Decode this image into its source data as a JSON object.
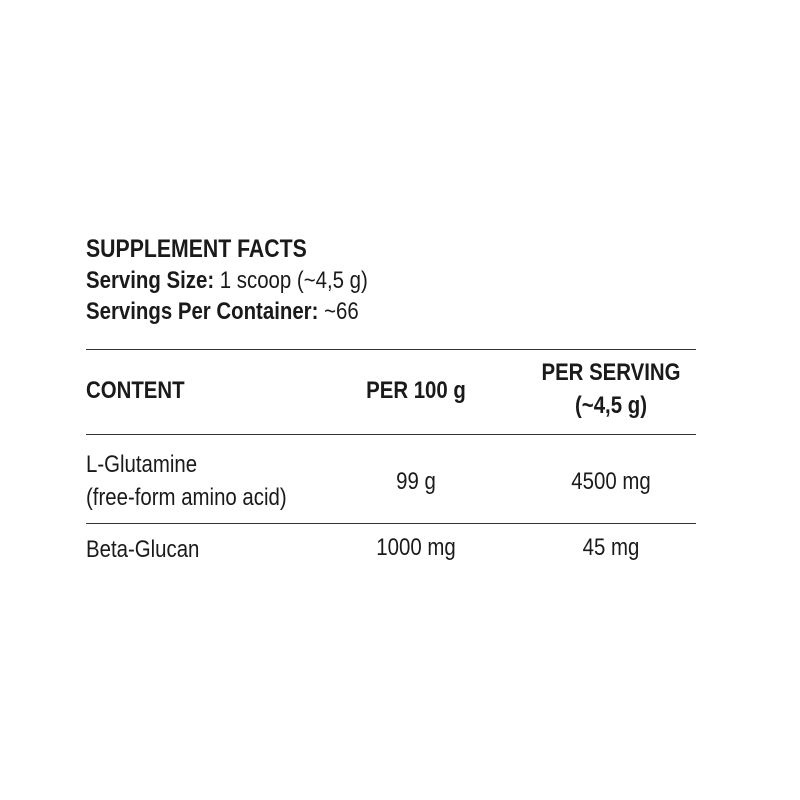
{
  "title": "SUPPLEMENT FACTS",
  "serving_size_label": "Serving Size:",
  "serving_size_value": " 1 scoop (~4,5 g)",
  "servings_label": "Servings Per Container:",
  "servings_value": " ~66",
  "table": {
    "headers": [
      "CONTENT",
      "PER 100 g",
      "PER SERVING",
      "(~4,5 g)"
    ],
    "rows": [
      {
        "name": "L-Glutamine",
        "sub": "(free-form amino acid)",
        "per100": "99 g",
        "perServing": "4500 mg"
      },
      {
        "name": "Beta-Glucan",
        "per100": "1000 mg",
        "perServing": "45 mg"
      }
    ]
  }
}
